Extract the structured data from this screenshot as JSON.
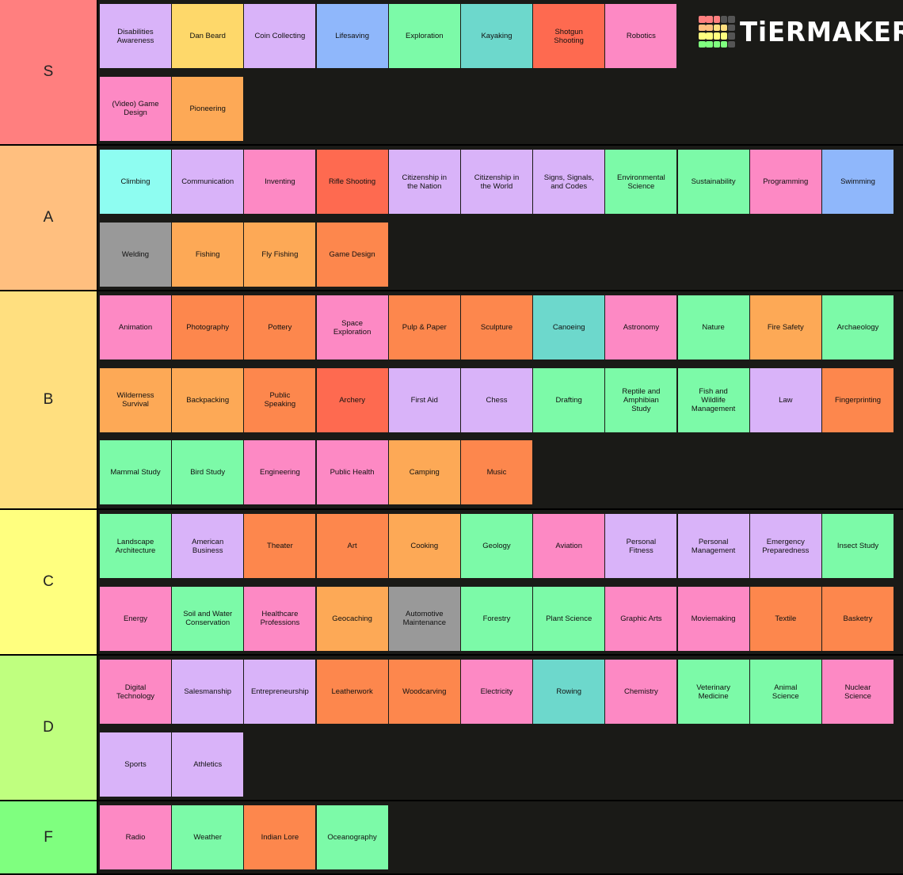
{
  "logo": {
    "text": "TiERMAKER",
    "grid_colors": [
      "#ff7f7f",
      "#ff7f7f",
      "#ff7f7f",
      "#555555",
      "#555555",
      "#ffbf7f",
      "#ffbf7f",
      "#ffdf7f",
      "#ffdf7f",
      "#555555",
      "#ffff7f",
      "#ffff7f",
      "#ffff7f",
      "#ffff7f",
      "#555555",
      "#7fff7f",
      "#7fff7f",
      "#7fff7f",
      "#7fff7f",
      "#555555"
    ]
  },
  "colors": {
    "purple": "#d9b3f9",
    "yellow": "#fed86a",
    "blue": "#8fb7fb",
    "green": "#7cfaa8",
    "teal": "#6dd8cc",
    "red": "#fe6a50",
    "pink": "#fd89c4",
    "orange": "#fda956",
    "darkorange": "#fd874d",
    "cyan": "#8efdf1",
    "gray": "#999999"
  },
  "tiers": [
    {
      "label": "S",
      "color": "#ff7f7f",
      "rows": [
        [
          [
            "Disabilities\nAwareness",
            "purple"
          ],
          [
            "Dan Beard",
            "yellow"
          ],
          [
            "Coin Collecting",
            "purple"
          ],
          [
            "Lifesaving",
            "blue"
          ],
          [
            "Exploration",
            "green"
          ],
          [
            "Kayaking",
            "teal"
          ],
          [
            "Shotgun\nShooting",
            "red"
          ],
          [
            "Robotics",
            "pink"
          ]
        ],
        [
          [
            "(Video) Game\nDesign",
            "pink"
          ],
          [
            "Pioneering",
            "orange"
          ]
        ]
      ]
    },
    {
      "label": "A",
      "color": "#ffbf7f",
      "rows": [
        [
          [
            "Climbing",
            "cyan"
          ],
          [
            "Communication",
            "purple"
          ],
          [
            "Inventing",
            "pink"
          ],
          [
            "Rifle Shooting",
            "red"
          ],
          [
            "Citizenship in\nthe Nation",
            "purple"
          ],
          [
            "Citizenship in\nthe World",
            "purple"
          ],
          [
            "Signs, Signals,\nand Codes",
            "purple"
          ],
          [
            "Environmental\nScience",
            "green"
          ],
          [
            "Sustainability",
            "green"
          ],
          [
            "Programming",
            "pink"
          ],
          [
            "Swimming",
            "blue"
          ]
        ],
        [
          [
            "Welding",
            "gray"
          ],
          [
            "Fishing",
            "orange"
          ],
          [
            "Fly Fishing",
            "orange"
          ],
          [
            "Game Design",
            "darkorange"
          ]
        ]
      ]
    },
    {
      "label": "B",
      "color": "#ffdf7f",
      "rows": [
        [
          [
            "Animation",
            "pink"
          ],
          [
            "Photography",
            "darkorange"
          ],
          [
            "Pottery",
            "darkorange"
          ],
          [
            "Space\nExploration",
            "pink"
          ],
          [
            "Pulp & Paper",
            "darkorange"
          ],
          [
            "Sculpture",
            "darkorange"
          ],
          [
            "Canoeing",
            "teal"
          ],
          [
            "Astronomy",
            "pink"
          ],
          [
            "Nature",
            "green"
          ],
          [
            "Fire Safety",
            "orange"
          ],
          [
            "Archaeology",
            "green"
          ]
        ],
        [
          [
            "Wilderness\nSurvival",
            "orange"
          ],
          [
            "Backpacking",
            "orange"
          ],
          [
            "Public\nSpeaking",
            "darkorange"
          ],
          [
            "Archery",
            "red"
          ],
          [
            "First Aid",
            "purple"
          ],
          [
            "Chess",
            "purple"
          ],
          [
            "Drafting",
            "green"
          ],
          [
            "Reptile and\nAmphibian\nStudy",
            "green"
          ],
          [
            "Fish and\nWildlife\nManagement",
            "green"
          ],
          [
            "Law",
            "purple"
          ],
          [
            "Fingerprinting",
            "darkorange"
          ]
        ],
        [
          [
            "Mammal Study",
            "green"
          ],
          [
            "Bird Study",
            "green"
          ],
          [
            "Engineering",
            "pink"
          ],
          [
            "Public Health",
            "pink"
          ],
          [
            "Camping",
            "orange"
          ],
          [
            "Music",
            "darkorange"
          ]
        ]
      ]
    },
    {
      "label": "C",
      "color": "#ffff7f",
      "rows": [
        [
          [
            "Landscape\nArchitecture",
            "green"
          ],
          [
            "American\nBusiness",
            "purple"
          ],
          [
            "Theater",
            "darkorange"
          ],
          [
            "Art",
            "darkorange"
          ],
          [
            "Cooking",
            "orange"
          ],
          [
            "Geology",
            "green"
          ],
          [
            "Aviation",
            "pink"
          ],
          [
            "Personal\nFitness",
            "purple"
          ],
          [
            "Personal\nManagement",
            "purple"
          ],
          [
            "Emergency\nPreparedness",
            "purple"
          ],
          [
            "Insect Study",
            "green"
          ]
        ],
        [
          [
            "Energy",
            "pink"
          ],
          [
            "Soil and Water\nConservation",
            "green"
          ],
          [
            "Healthcare\nProfessions",
            "pink"
          ],
          [
            "Geocaching",
            "orange"
          ],
          [
            "Automotive\nMaintenance",
            "gray"
          ],
          [
            "Forestry",
            "green"
          ],
          [
            "Plant Science",
            "green"
          ],
          [
            "Graphic Arts",
            "pink"
          ],
          [
            "Moviemaking",
            "pink"
          ],
          [
            "Textile",
            "darkorange"
          ],
          [
            "Basketry",
            "darkorange"
          ]
        ]
      ]
    },
    {
      "label": "D",
      "color": "#bfff7f",
      "rows": [
        [
          [
            "Digital\nTechnology",
            "pink"
          ],
          [
            "Salesmanship",
            "purple"
          ],
          [
            "Entrepreneurship",
            "purple"
          ],
          [
            "Leatherwork",
            "darkorange"
          ],
          [
            "Woodcarving",
            "darkorange"
          ],
          [
            "Electricity",
            "pink"
          ],
          [
            "Rowing",
            "teal"
          ],
          [
            "Chemistry",
            "pink"
          ],
          [
            "Veterinary\nMedicine",
            "green"
          ],
          [
            "Animal\nScience",
            "green"
          ],
          [
            "Nuclear\nScience",
            "pink"
          ]
        ],
        [
          [
            "Sports",
            "purple"
          ],
          [
            "Athletics",
            "purple"
          ]
        ]
      ]
    },
    {
      "label": "F",
      "color": "#7fff7f",
      "rows": [
        [
          [
            "Radio",
            "pink"
          ],
          [
            "Weather",
            "green"
          ],
          [
            "Indian Lore",
            "darkorange"
          ],
          [
            "Oceanography",
            "green"
          ]
        ]
      ]
    }
  ]
}
